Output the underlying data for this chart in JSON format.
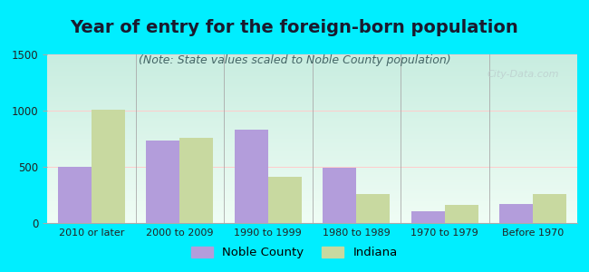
{
  "title": "Year of entry for the foreign-born population",
  "subtitle": "(Note: State values scaled to Noble County population)",
  "categories": [
    "2010 or later",
    "2000 to 2009",
    "1990 to 1999",
    "1980 to 1989",
    "1970 to 1979",
    "Before 1970"
  ],
  "noble_county": [
    500,
    730,
    830,
    490,
    105,
    170
  ],
  "indiana": [
    1010,
    760,
    410,
    255,
    160,
    260
  ],
  "noble_color": "#b39ddb",
  "indiana_color": "#c8d9a0",
  "bar_width": 0.38,
  "ylim": [
    0,
    1500
  ],
  "yticks": [
    0,
    500,
    1000,
    1500
  ],
  "background_color": "#00eeff",
  "plot_bg_top": "#d8f5e8",
  "plot_bg_bottom": "#f5fff5",
  "legend_noble": "Noble County",
  "legend_indiana": "Indiana",
  "title_fontsize": 14,
  "subtitle_fontsize": 9,
  "title_color": "#1a1a2e",
  "subtitle_color": "#446666"
}
